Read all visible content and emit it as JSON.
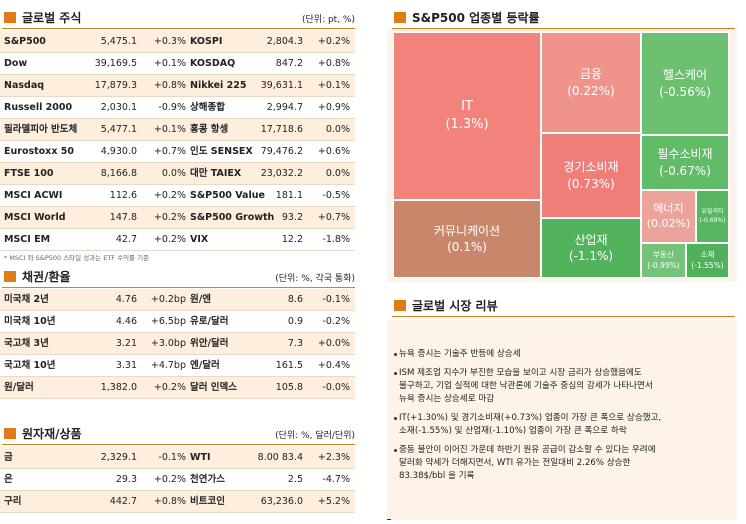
{
  "stocks": {
    "title": "글로벌 주식",
    "unit": "(단위: pt, %)",
    "rows": [
      [
        "S&P500",
        "5,475.1",
        "+0.3%",
        "KOSPI",
        "2,804.3",
        "+0.2%"
      ],
      [
        "Dow",
        "39,169.5",
        "+0.1%",
        "KOSDAQ",
        "847.2",
        "+0.8%"
      ],
      [
        "Nasdaq",
        "17,879.3",
        "+0.8%",
        "Nikkei 225",
        "39,631.1",
        "+0.1%"
      ],
      [
        "Russell 2000",
        "2,030.1",
        "-0.9%",
        "상해종합",
        "2,994.7",
        "+0.9%"
      ],
      [
        "필라델피아 반도체",
        "5,477.1",
        "+0.1%",
        "홍콩 항셍",
        "17,718.6",
        "0.0%"
      ],
      [
        "Eurostoxx 50",
        "4,930.0",
        "+0.7%",
        "인도 SENSEX",
        "79,476.2",
        "+0.6%"
      ],
      [
        "FTSE 100",
        "8,166.8",
        "0.0%",
        "대만 TAIEX",
        "23,032.2",
        "0.0%"
      ],
      [
        "MSCI ACWI",
        "112.6",
        "+0.2%",
        "S&P500 Value",
        "181.1",
        "-0.5%"
      ],
      [
        "MSCI World",
        "147.8",
        "+0.2%",
        "S&P500 Growth",
        "93.2",
        "+0.7%"
      ],
      [
        "MSCI EM",
        "42.7",
        "+0.2%",
        "VIX",
        "12.2",
        "-1.8%"
      ]
    ],
    "note": "* MSCI 와 S&P500 스타일 성과는 ETF 수익률 기준"
  },
  "bonds": {
    "title": "채권/환율",
    "unit": "(단위: %, 각국 통화)",
    "rows": [
      [
        "미국채 2년",
        "4.76",
        "+0.2bp",
        "원/엔",
        "8.6",
        "-0.1%"
      ],
      [
        "미국채 10년",
        "4.46",
        "+6.5bp",
        "유로/달러",
        "0.9",
        "-0.2%"
      ],
      [
        "국고채 3년",
        "3.21",
        "+3.0bp",
        "위안/달러",
        "7.3",
        "+0.0%"
      ],
      [
        "국고채 10년",
        "3.31",
        "+4.7bp",
        "엔/달러",
        "161.5",
        "+0.4%"
      ],
      [
        "원/달러",
        "1,382.0",
        "+0.2%",
        "달러 인덱스",
        "105.8",
        "-0.0%"
      ]
    ]
  },
  "commodities": {
    "title": "원자재/상품",
    "unit": "(단위: %, 달러/단위)",
    "rows": [
      [
        "금",
        "2,329.1",
        "-0.1%",
        "WTI",
        "8.00 83.4",
        "+2.3%"
      ],
      [
        "은",
        "29.3",
        "+0.2%",
        "천연가스",
        "2.5",
        "-4.7%"
      ],
      [
        "구리",
        "442.7",
        "+0.8%",
        "비트코인",
        "63,236.0",
        "+5.2%"
      ]
    ]
  },
  "sectors": {
    "title": "S&P500 업종별 등락률",
    "items": [
      {
        "name": "IT",
        "change": "(1.3%)",
        "color": "#f2837b"
      },
      {
        "name": "커뮤니케이션",
        "change": "(0.1%)",
        "color": "#c8876b"
      },
      {
        "name": "금융",
        "change": "(0.22%)",
        "color": "#f0948b"
      },
      {
        "name": "경기소비재",
        "change": "(0.73%)",
        "color": "#ee7e77"
      },
      {
        "name": "산업재",
        "change": "(-1.1%)",
        "color": "#53b35d"
      },
      {
        "name": "헬스케어",
        "change": "(-0.56%)",
        "color": "#6cc070"
      },
      {
        "name": "필수소비재",
        "change": "(-0.67%)",
        "color": "#62bb67"
      },
      {
        "name": "에너지",
        "change": "(0.02%)",
        "color": "#eca39c"
      },
      {
        "name": "유틸리티",
        "change": "(-0.69%)",
        "color": "#58b662"
      },
      {
        "name": "부동산",
        "change": "(-0.99%)",
        "color": "#74c378"
      },
      {
        "name": "소재",
        "change": "(-1.55%)",
        "color": "#4fb25a"
      }
    ]
  },
  "review": {
    "title": "글로벌 시장 리뷰",
    "bullets": [
      [
        "뉴욕 증시는 기술주 반등에 상승세"
      ],
      [
        "ISM 제조업 지수가 부진한 모습을 보이고 시장 금리가 상승했음에도",
        "불구하고, 기업 실적에 대한 낙관론에 기술주 중심의 강세가 나타나면서",
        "뉴욕 증시는 상승세로 마감"
      ],
      [
        "IT(+1.30%) 및 경기소비재(+0.73%) 업종이 가장 큰 폭으로 상승했고,",
        "소재(-1.55%) 및 산업재(-1.10%) 업종이 가장 큰 폭으로 하락"
      ],
      [
        "중동 불안이 이어진 가운데 하반기 원유 공급이 감소할 수 있다는 우려에",
        "달러화 약세가 더해지면서, WTI 유가는 전일대비 2.26% 상승한",
        "83.38$/bbl 을 기록"
      ]
    ]
  }
}
